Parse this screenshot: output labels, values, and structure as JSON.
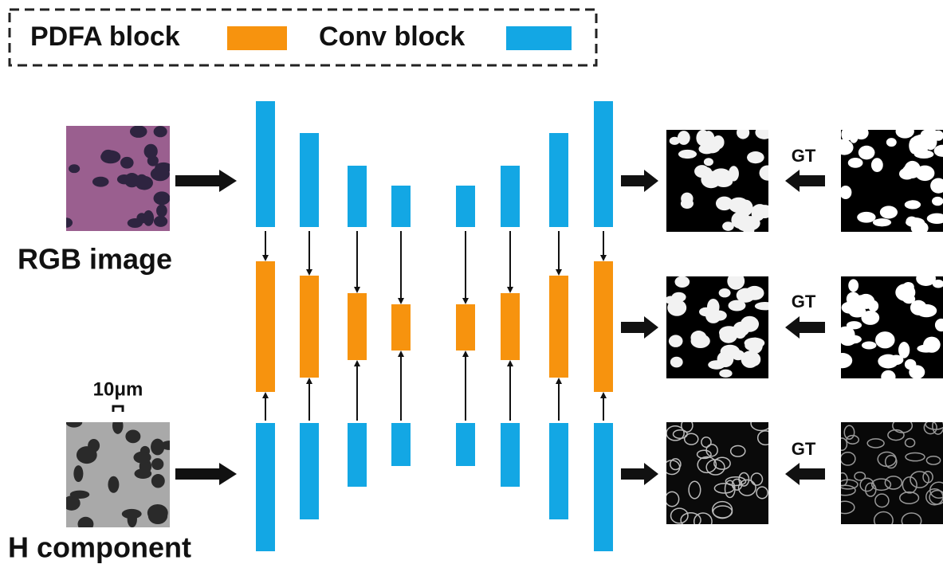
{
  "legend": {
    "items": [
      {
        "label": "PDFA block"
      },
      {
        "label": "Conv block"
      }
    ]
  },
  "inputs": [
    {
      "label": "RGB image"
    },
    {
      "label": "H component"
    }
  ],
  "scale_bar": "10μm",
  "gt_labels": [
    "GT",
    "GT",
    "GT"
  ]
}
